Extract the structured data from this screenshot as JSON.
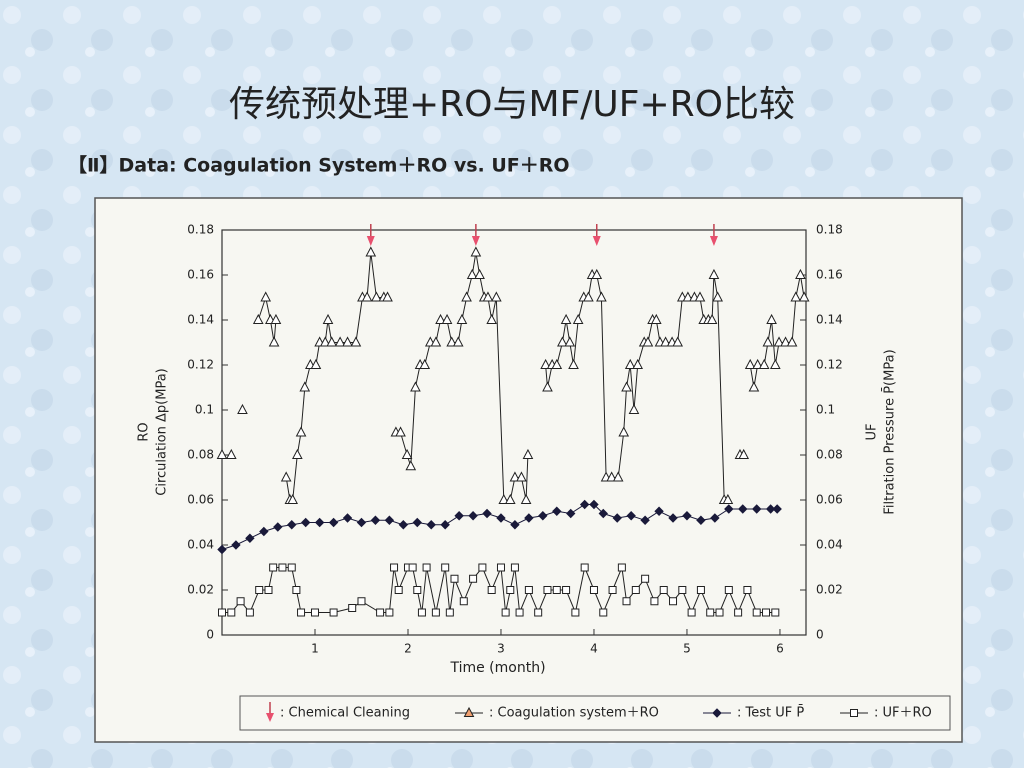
{
  "title": "传统预处理+RO与MF/UF+RO比较",
  "chart_data": {
    "type": "line",
    "title": "【Ⅱ】Data: Coagulation System＋RO vs. UF＋RO",
    "x_label": "Time (month)",
    "y_label": [
      "RO",
      "Circulation Δp(MPa)"
    ],
    "y2_label": [
      "UF",
      "Filtration Pressure P̄(MPa)"
    ],
    "xlim": [
      0,
      6.28
    ],
    "xticks": [
      1,
      2,
      3,
      4,
      5,
      6
    ],
    "ylim": [
      0,
      0.18
    ],
    "yticks": [
      0,
      0.02,
      0.04,
      0.06,
      0.08,
      0.1,
      0.12,
      0.14,
      0.16,
      0.18
    ],
    "y2lim": [
      0,
      0.18
    ],
    "y2ticks": [
      0,
      0.02,
      0.04,
      0.06,
      0.08,
      0.1,
      0.12,
      0.14,
      0.16,
      0.18
    ],
    "legend": "bottom",
    "events": {
      "name": ": Chemical Cleaning",
      "color": "#e8506e",
      "x": [
        1.6,
        2.73,
        4.03,
        5.29
      ]
    },
    "series": [
      {
        "name": ": Coagulation system＋RO",
        "color": "#222222",
        "marker": "triangle",
        "marker_fill": "#f0a070",
        "x": [
          0,
          0.1,
          0.16,
          0.22,
          0.3,
          0.39,
          0.47,
          0.52,
          0.56,
          0.58,
          0.63,
          0.69,
          0.73,
          0.76,
          0.81,
          0.85,
          0.89,
          0.95,
          1.01,
          1.05,
          1.11,
          1.14,
          1.18,
          1.27,
          1.35,
          1.44,
          1.51,
          1.56,
          1.6,
          1.66,
          1.74,
          1.78,
          1.82,
          1.87,
          1.92,
          1.99,
          2.03,
          2.08,
          2.13,
          2.18,
          2.24,
          2.3,
          2.35,
          2.42,
          2.47,
          2.54,
          2.58,
          2.63,
          2.69,
          2.73,
          2.77,
          2.82,
          2.86,
          2.9,
          2.95,
          3.03,
          3.1,
          3.15,
          3.22,
          3.27,
          3.29,
          3.4,
          3.48,
          3.5,
          3.55,
          3.6,
          3.66,
          3.7,
          3.74,
          3.78,
          3.83,
          3.89,
          3.94,
          3.98,
          4.03,
          4.08,
          4.13,
          4.19,
          4.26,
          4.32,
          4.35,
          4.39,
          4.43,
          4.47,
          4.54,
          4.58,
          4.63,
          4.67,
          4.71,
          4.77,
          4.84,
          4.9,
          4.95,
          5.01,
          5.08,
          5.14,
          5.18,
          5.23,
          5.27,
          5.29,
          5.33,
          5.4,
          5.44,
          5.5,
          5.57,
          5.61,
          5.65,
          5.68,
          5.72,
          5.76,
          5.83,
          5.87,
          5.91,
          5.95,
          5.99,
          6.06,
          6.13,
          6.17,
          6.22,
          6.26
        ],
        "values": [
          0.08,
          0.08,
          null,
          0.1,
          null,
          0.14,
          0.15,
          0.14,
          0.13,
          0.14,
          null,
          0.07,
          0.06,
          0.06,
          0.08,
          0.09,
          0.11,
          0.12,
          0.12,
          0.13,
          0.13,
          0.14,
          0.13,
          0.13,
          0.13,
          0.13,
          0.15,
          0.15,
          0.17,
          0.15,
          0.15,
          0.15,
          null,
          0.09,
          0.09,
          0.08,
          0.075,
          0.11,
          0.12,
          0.12,
          0.13,
          0.13,
          0.14,
          0.14,
          0.13,
          0.13,
          0.14,
          0.15,
          0.16,
          0.17,
          0.16,
          0.15,
          0.15,
          0.14,
          0.15,
          0.06,
          0.06,
          0.07,
          0.07,
          0.06,
          0.08,
          null,
          0.12,
          0.11,
          0.12,
          0.12,
          0.13,
          0.14,
          0.13,
          0.12,
          0.14,
          0.15,
          0.15,
          0.16,
          0.16,
          0.15,
          0.07,
          0.07,
          0.07,
          0.09,
          0.11,
          0.12,
          0.1,
          0.12,
          0.13,
          0.13,
          0.14,
          0.14,
          0.13,
          0.13,
          0.13,
          0.13,
          0.15,
          0.15,
          0.15,
          0.15,
          0.14,
          0.14,
          0.14,
          0.16,
          0.15,
          0.06,
          0.06,
          null,
          0.08,
          0.08,
          null,
          0.12,
          0.11,
          0.12,
          0.12,
          0.13,
          0.14,
          0.12,
          0.13,
          0.13,
          0.13,
          0.15,
          0.16,
          0.15
        ]
      },
      {
        "name": ": Test UF P̄",
        "color": "#1a1a3a",
        "marker": "diamond",
        "marker_fill": "#1a1a3a",
        "x": [
          0,
          0.15,
          0.3,
          0.45,
          0.6,
          0.75,
          0.9,
          1.05,
          1.2,
          1.35,
          1.5,
          1.65,
          1.8,
          1.95,
          2.1,
          2.25,
          2.4,
          2.55,
          2.7,
          2.85,
          3.0,
          3.15,
          3.3,
          3.45,
          3.6,
          3.75,
          3.9,
          4.0,
          4.1,
          4.25,
          4.4,
          4.55,
          4.7,
          4.85,
          5.0,
          5.15,
          5.3,
          5.45,
          5.6,
          5.75,
          5.9,
          5.97
        ],
        "values": [
          0.038,
          0.04,
          0.043,
          0.046,
          0.048,
          0.049,
          0.05,
          0.05,
          0.05,
          0.052,
          0.05,
          0.051,
          0.051,
          0.049,
          0.05,
          0.049,
          0.049,
          0.053,
          0.053,
          0.054,
          0.052,
          0.049,
          0.052,
          0.053,
          0.055,
          0.054,
          0.058,
          0.058,
          0.054,
          0.052,
          0.053,
          0.051,
          0.055,
          0.052,
          0.053,
          0.051,
          0.052,
          0.056,
          0.056,
          0.056,
          0.056,
          0.056
        ]
      },
      {
        "name": ": UF＋RO",
        "color": "#222222",
        "marker": "square",
        "marker_fill": "#ffffff",
        "x": [
          0,
          0.1,
          0.2,
          0.3,
          0.4,
          0.5,
          0.55,
          0.65,
          0.75,
          0.8,
          0.85,
          1.0,
          1.2,
          1.4,
          1.5,
          1.7,
          1.8,
          1.85,
          1.9,
          2.0,
          2.05,
          2.1,
          2.15,
          2.2,
          2.3,
          2.4,
          2.45,
          2.5,
          2.6,
          2.7,
          2.8,
          2.9,
          3.0,
          3.05,
          3.1,
          3.15,
          3.2,
          3.3,
          3.4,
          3.5,
          3.6,
          3.7,
          3.8,
          3.9,
          4.0,
          4.1,
          4.2,
          4.3,
          4.35,
          4.45,
          4.55,
          4.65,
          4.75,
          4.85,
          4.95,
          5.05,
          5.15,
          5.25,
          5.35,
          5.45,
          5.55,
          5.65,
          5.75,
          5.85,
          5.95
        ],
        "values": [
          0.01,
          0.01,
          0.015,
          0.01,
          0.02,
          0.02,
          0.03,
          0.03,
          0.03,
          0.02,
          0.01,
          0.01,
          0.01,
          0.012,
          0.015,
          0.01,
          0.01,
          0.03,
          0.02,
          0.03,
          0.03,
          0.02,
          0.01,
          0.03,
          0.01,
          0.03,
          0.01,
          0.025,
          0.015,
          0.025,
          0.03,
          0.02,
          0.03,
          0.01,
          0.02,
          0.03,
          0.01,
          0.02,
          0.01,
          0.02,
          0.02,
          0.02,
          0.01,
          0.03,
          0.02,
          0.01,
          0.02,
          0.03,
          0.015,
          0.02,
          0.025,
          0.015,
          0.02,
          0.015,
          0.02,
          0.01,
          0.02,
          0.01,
          0.01,
          0.02,
          0.01,
          0.02,
          0.01,
          0.01,
          0.01
        ]
      }
    ]
  }
}
